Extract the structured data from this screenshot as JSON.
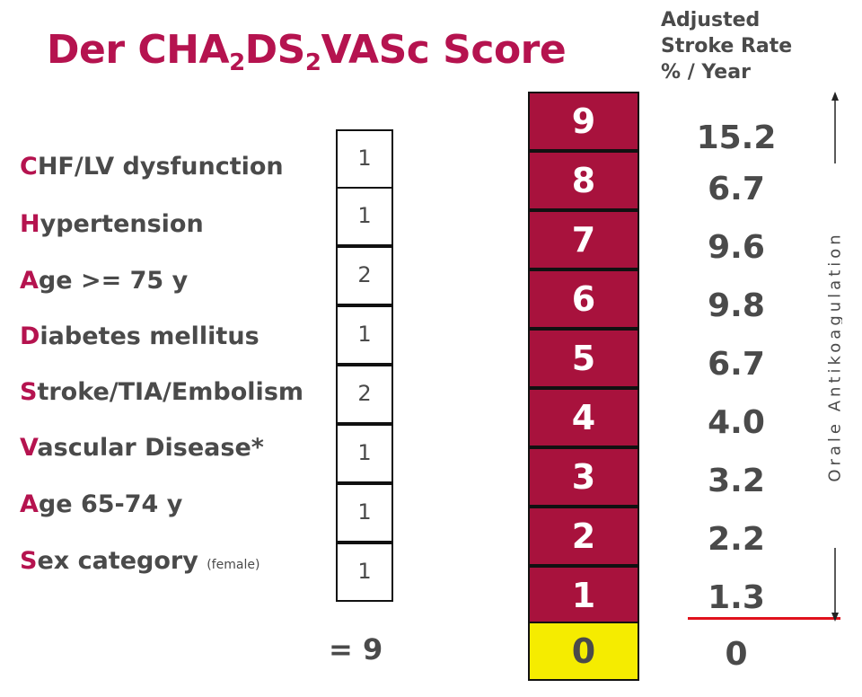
{
  "title": {
    "pre": "Der CHA",
    "sub1": "2",
    "mid": "DS",
    "sub2": "2",
    "post": "VASc Score"
  },
  "rate_header": [
    "Adjusted",
    "Stroke Rate",
    "% / Year"
  ],
  "criteria": [
    {
      "initial": "C",
      "rest": "HF/LV dysfunction",
      "small": "",
      "points": "1"
    },
    {
      "initial": "H",
      "rest": "ypertension",
      "small": "",
      "points": "1"
    },
    {
      "initial": "A",
      "rest": "ge >= 75 y",
      "small": "",
      "points": "2"
    },
    {
      "initial": "D",
      "rest": "iabetes mellitus",
      "small": "",
      "points": "1"
    },
    {
      "initial": "S",
      "rest": "troke/TIA/Embolism",
      "small": "",
      "points": "2"
    },
    {
      "initial": "V",
      "rest": "ascular Disease*",
      "small": "",
      "points": "1"
    },
    {
      "initial": "A",
      "rest": "ge 65-74 y",
      "small": "",
      "points": "1"
    },
    {
      "initial": "S",
      "rest": "ex category ",
      "small": "(female)",
      "points": "1"
    }
  ],
  "total": "= 9",
  "scores": [
    "9",
    "8",
    "7",
    "6",
    "5",
    "4",
    "3",
    "2",
    "1",
    "0"
  ],
  "rates": [
    "15.2",
    "6.7",
    "9.6",
    "9.8",
    "6.7",
    "4.0",
    "3.2",
    "2.2",
    "1.3",
    "0"
  ],
  "arrow_label": "Orale Antikoagulation",
  "colors": {
    "accent": "#b5134f",
    "score_bg": "#a8123d",
    "zero_bg": "#f5ec00",
    "threshold_line": "#e0121c"
  }
}
